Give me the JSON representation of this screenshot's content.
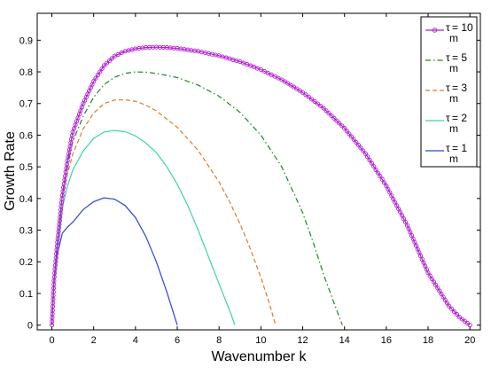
{
  "chart_data": {
    "type": "line",
    "xlabel": "Wavenumber k",
    "ylabel": "Growth Rate",
    "xlim": [
      -0.7,
      20.5
    ],
    "ylim": [
      -0.015,
      0.985
    ],
    "xticks": [
      0,
      2,
      4,
      6,
      8,
      10,
      12,
      14,
      16,
      18,
      20
    ],
    "yticks": [
      0,
      0.1,
      0.2,
      0.3,
      0.4,
      0.5,
      0.6,
      0.7,
      0.8,
      0.9
    ],
    "ytick_labels": [
      "0",
      "0.1",
      "0.2",
      "0.3",
      "0.4",
      "0.5",
      "0.6",
      "0.7",
      "0.8",
      "0.9"
    ],
    "grid": false,
    "legend_position": "top-right",
    "series": [
      {
        "name": "τm = 10",
        "legend_label": {
          "base": "τ",
          "sub": "m",
          "rest": " = 10"
        },
        "color": "#b020d0",
        "style": "solid-markers",
        "x": [
          0,
          0.1,
          0.25,
          0.5,
          0.75,
          1,
          1.5,
          2,
          2.5,
          3,
          3.5,
          4,
          4.5,
          5,
          5.5,
          6,
          7,
          8,
          9,
          10,
          11,
          12,
          13,
          14,
          15,
          16,
          17,
          18,
          19,
          19.5,
          20
        ],
        "y": [
          0,
          0.14,
          0.25,
          0.41,
          0.52,
          0.61,
          0.7,
          0.77,
          0.82,
          0.85,
          0.865,
          0.873,
          0.877,
          0.878,
          0.877,
          0.874,
          0.865,
          0.851,
          0.832,
          0.807,
          0.775,
          0.735,
          0.685,
          0.622,
          0.542,
          0.44,
          0.315,
          0.165,
          0.06,
          0.025,
          0
        ]
      },
      {
        "name": "τm = 5",
        "legend_label": {
          "base": "τ",
          "sub": "m",
          "rest": " = 5"
        },
        "color": "#1a8a1a",
        "style": "dash-dot",
        "x": [
          0,
          0.1,
          0.25,
          0.5,
          0.75,
          1,
          1.5,
          2,
          2.5,
          3,
          3.5,
          4,
          4.5,
          5,
          6,
          7,
          8,
          9,
          10,
          11,
          12,
          12.5,
          13,
          13.5,
          13.9
        ],
        "y": [
          0,
          0.14,
          0.25,
          0.41,
          0.51,
          0.58,
          0.66,
          0.72,
          0.76,
          0.783,
          0.795,
          0.8,
          0.799,
          0.795,
          0.782,
          0.758,
          0.723,
          0.672,
          0.6,
          0.5,
          0.355,
          0.262,
          0.16,
          0.07,
          0
        ]
      },
      {
        "name": "τm = 3",
        "legend_label": {
          "base": "τ",
          "sub": "m",
          "rest": " = 3"
        },
        "color": "#e07a2a",
        "style": "dashed",
        "x": [
          0,
          0.1,
          0.25,
          0.5,
          0.75,
          1,
          1.5,
          2,
          2.5,
          3,
          3.5,
          4,
          4.5,
          5,
          6,
          7,
          8,
          8.5,
          9,
          9.5,
          10,
          10.4,
          10.7
        ],
        "y": [
          0,
          0.14,
          0.25,
          0.4,
          0.48,
          0.54,
          0.62,
          0.67,
          0.7,
          0.711,
          0.712,
          0.707,
          0.695,
          0.677,
          0.625,
          0.552,
          0.452,
          0.39,
          0.32,
          0.24,
          0.15,
          0.07,
          0
        ]
      },
      {
        "name": "τm = 2",
        "legend_label": {
          "base": "τ",
          "sub": "m",
          "rest": " = 2"
        },
        "color": "#3ad6a6",
        "style": "solid",
        "x": [
          0,
          0.1,
          0.25,
          0.5,
          0.75,
          1,
          1.5,
          2,
          2.5,
          3,
          3.5,
          4,
          4.5,
          5,
          5.5,
          6,
          6.5,
          7,
          7.5,
          8,
          8.3,
          8.6,
          8.75
        ],
        "y": [
          0,
          0.13,
          0.24,
          0.37,
          0.44,
          0.49,
          0.55,
          0.59,
          0.61,
          0.615,
          0.611,
          0.598,
          0.575,
          0.545,
          0.5,
          0.445,
          0.378,
          0.3,
          0.215,
          0.13,
          0.08,
          0.03,
          0
        ]
      },
      {
        "name": "τm = 1",
        "legend_label": {
          "base": "τ",
          "sub": "m",
          "rest": " = 1"
        },
        "color": "#2a44dd",
        "style": "solid",
        "x": [
          0,
          0.1,
          0.25,
          0.5,
          0.75,
          1,
          1.25,
          1.5,
          2,
          2.5,
          3,
          3.5,
          4,
          4.5,
          5,
          5.5,
          6
        ],
        "y": [
          0,
          0.13,
          0.22,
          0.29,
          0.31,
          0.325,
          0.345,
          0.365,
          0.39,
          0.402,
          0.398,
          0.378,
          0.34,
          0.28,
          0.2,
          0.105,
          0
        ]
      }
    ]
  }
}
